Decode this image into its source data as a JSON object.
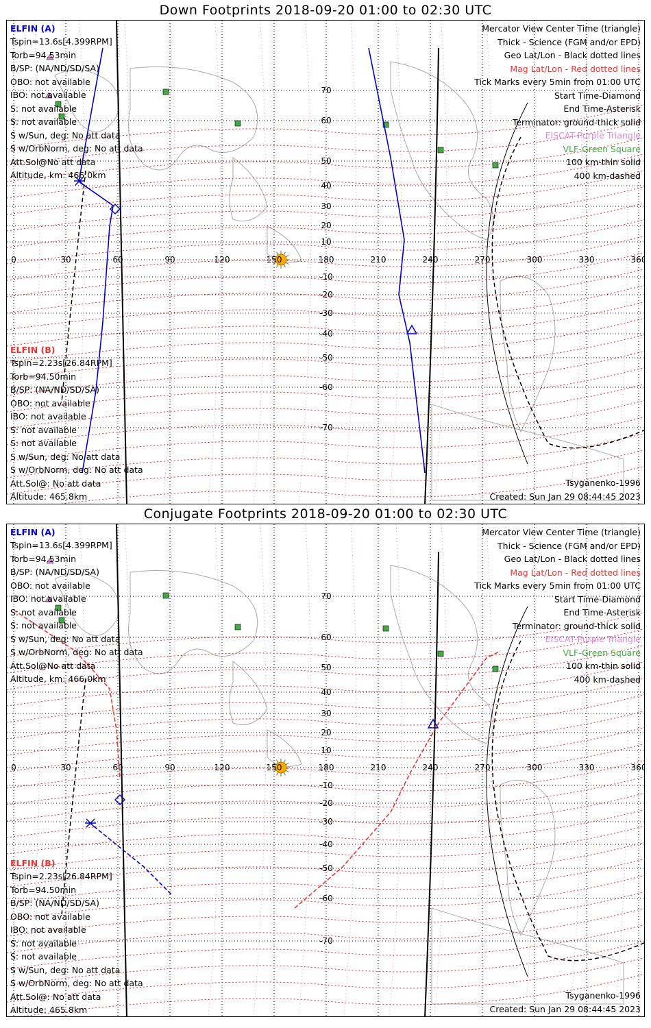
{
  "panels": [
    {
      "title": "Down Footprints 2018-09-20 01:00 to 02:30 UTC",
      "sat_a": {
        "name": "ELFIN (A)",
        "lines": [
          "Tspin=13.6s[4.399RPM]",
          "Torb=94.53min",
          "B/SP: (NA/ND/SD/SA)",
          "OBO: not available",
          "IBO: not available",
          "S: not available",
          "S: not available",
          "S w/Sun, deg: No att data",
          "S w/OrbNorm, deg: No att data",
          "Att.Sol@No att data",
          "Altitude, km: 466.0km"
        ]
      },
      "sat_b": {
        "name": "ELFIN (B)",
        "lines": [
          "Tspin=2.23s[26.84RPM]",
          "Torb=94.50min",
          "B/SP: (NA/ND/SD/SA)",
          "OBO: not available",
          "IBO: not available",
          "S: not available",
          "S: not available",
          "S w/Sun, deg: No att data",
          "S w/OrbNorm, deg: No att data",
          "Att.Sol@: No att data",
          "Altitude: 465.8km"
        ]
      },
      "legend": [
        "Mercator View Center Time (triangle)",
        "Thick - Science (FGM and/or EPD)",
        "Geo Lat/Lon - Black dotted lines",
        "Mag Lat/Lon - Red dotted lines",
        "Tick Marks every 5min from 01:00 UTC",
        "Start Time-Diamond",
        "End Time-Asterisk",
        "Terminator: ground-thick solid",
        "EISCAT-Purple Triangle",
        "VLF-Green Square",
        "100 km-thin solid",
        "400 km-dashed"
      ],
      "model": "Tsyganenko-1996",
      "created": "Created: Sun Jan 29 08:44:45 2023"
    },
    {
      "title": "Conjugate Footprints 2018-09-20 01:00 to 02:30 UTC",
      "sat_a": {
        "name": "ELFIN (A)",
        "lines": [
          "Tspin=13.6s[4.399RPM]",
          "Torb=94.53min",
          "B/SP: (NA/ND/SD/SA)",
          "OBO: not available",
          "IBO: not available",
          "S: not available",
          "S: not available",
          "S w/Sun, deg: No att data",
          "S w/OrbNorm, deg: No att data",
          "Att.Sol@No att data",
          "Altitude, km: 466.0km"
        ]
      },
      "sat_b": {
        "name": "ELFIN (B)",
        "lines": [
          "Tspin=2.23s[26.84RPM]",
          "Torb=94.50min",
          "B/SP: (NA/ND/SD/SA)",
          "OBO: not available",
          "IBO: not available",
          "S: not available",
          "S: not available",
          "S w/Sun, deg: No att data",
          "S w/OrbNorm, deg: No att data",
          "Att.Sol@: No att data",
          "Altitude: 465.8km"
        ]
      },
      "legend": [
        "Mercator View Center Time (triangle)",
        "Thick - Science (FGM and/or EPD)",
        "Geo Lat/Lon - Black dotted lines",
        "Mag Lat/Lon - Red dotted lines",
        "Tick Marks every 5min from 01:00 UTC",
        "Start Time-Diamond",
        "End Time-Asterisk",
        "Terminator: ground-thick solid",
        "EISCAT-Purple Triangle",
        "VLF-Green Square",
        "100 km-thin solid",
        "400 km-dashed"
      ],
      "model": "Tsyganenko-1996",
      "created": "Created: Sun Jan 29 08:44:45 2023"
    }
  ],
  "map": {
    "lon_ticks": [
      "0",
      "30",
      "60",
      "90",
      "120",
      "150",
      "180",
      "210",
      "240",
      "270",
      "300",
      "330",
      "360"
    ],
    "lat_ticks": [
      "70",
      "60",
      "50",
      "40",
      "30",
      "20",
      "10",
      "0",
      "-10",
      "-20",
      "-30",
      "-40",
      "-50",
      "-60",
      "-70"
    ],
    "colors": {
      "sat_a": "#0000cc",
      "sat_b": "#ee3333",
      "mag_grid": "#ee2222",
      "geo_grid": "#000000",
      "eiscat": "#dd88dd",
      "vlf": "#44aa44",
      "coast": "#aaaaaa",
      "sun": "#ffaa00"
    }
  }
}
